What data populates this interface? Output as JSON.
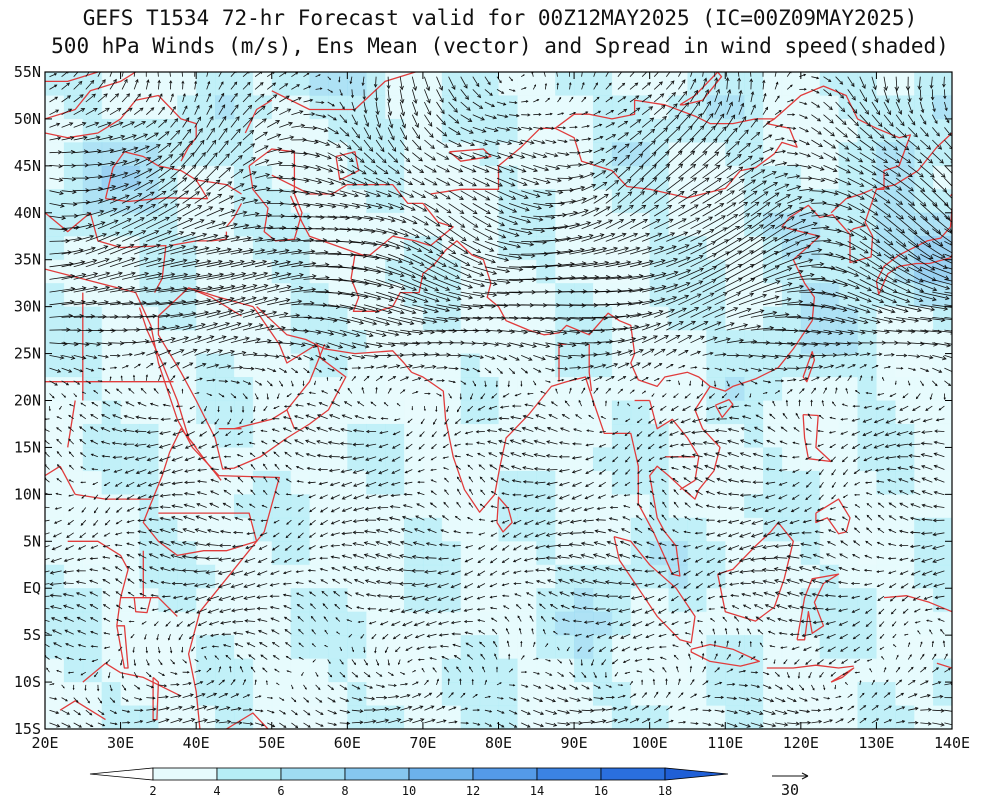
{
  "title_line1": "GEFS T1534 72-hr Forecast valid for 00Z12MAY2025 (IC=00Z09MAY2025)",
  "title_line2": "500 hPa Winds (m/s), Ens Mean (vector) and Spread in wind speed(shaded)",
  "lat_labels": [
    "55N",
    "50N",
    "45N",
    "40N",
    "35N",
    "30N",
    "25N",
    "20N",
    "15N",
    "10N",
    "5N",
    "EQ",
    "5S",
    "10S",
    "15S"
  ],
  "lon_labels": [
    "20E",
    "30E",
    "40E",
    "50E",
    "60E",
    "70E",
    "80E",
    "90E",
    "100E",
    "110E",
    "120E",
    "130E",
    "140E"
  ],
  "colorbar": {
    "ticks": [
      "2",
      "4",
      "6",
      "8",
      "10",
      "12",
      "14",
      "16",
      "18"
    ],
    "colors": [
      "#ffffff",
      "#e6fbfd",
      "#b6eef6",
      "#9fdcf2",
      "#86c7ef",
      "#6cb1ec",
      "#549ae8",
      "#3b83e3",
      "#2a6fde",
      "#1f5fd6"
    ]
  },
  "reference_vector_label": "30",
  "colors": {
    "coastline": "#e03c3c",
    "arrow": "#111111",
    "frame": "#000000"
  }
}
